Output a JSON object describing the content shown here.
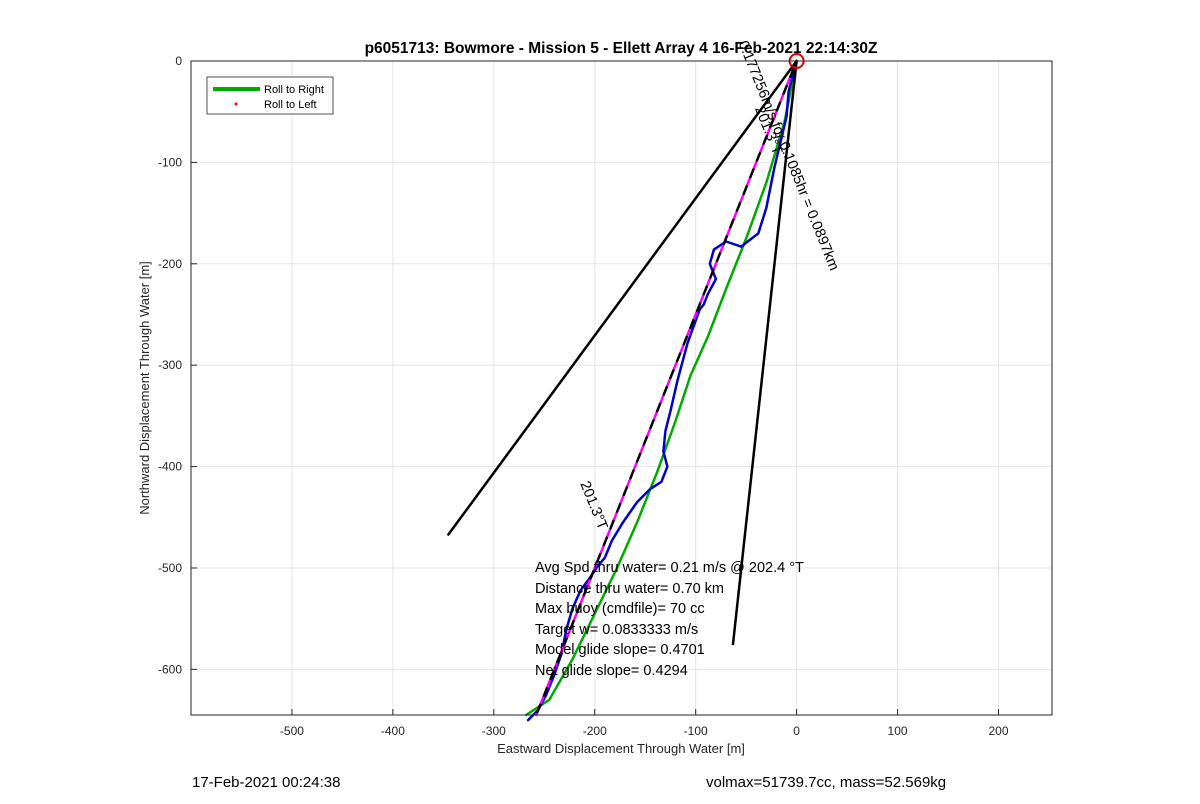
{
  "chart_data": {
    "type": "line",
    "title": "p6051713: Bowmore - Mission 5 - Ellett Array 4 16-Feb-2021 22:14:30Z",
    "xlabel": "Eastward Displacement Through Water [m]",
    "ylabel": "Northward Displacement Through Water [m]",
    "xlim": [
      -600,
      253
    ],
    "ylim": [
      -645,
      0
    ],
    "xticks": [
      -500,
      -400,
      -300,
      -200,
      -100,
      0,
      100,
      200
    ],
    "yticks": [
      0,
      -100,
      -200,
      -300,
      -400,
      -500,
      -600
    ],
    "grid": true,
    "legend_position": "top-left",
    "legend": [
      {
        "label": "Roll to Right",
        "color": "#00aa00",
        "style": "line"
      },
      {
        "label": "Roll to Left",
        "color": "#ff0000",
        "style": "dot"
      }
    ],
    "series": [
      {
        "name": "Roll to Right",
        "color": "#00aa00",
        "x": [
          0,
          -12,
          -30,
          -50,
          -70,
          -88,
          -105,
          -120,
          -138,
          -158,
          -178,
          -200,
          -222,
          -245,
          -268
        ],
        "y": [
          0,
          -60,
          -120,
          -175,
          -225,
          -272,
          -310,
          -355,
          -405,
          -455,
          -500,
          -545,
          -590,
          -630,
          -645
        ]
      },
      {
        "color": "#0000cc",
        "x": [
          0,
          -8,
          -10,
          -22,
          -30,
          -38,
          -55,
          -70,
          -82,
          -86,
          -80,
          -88,
          -92,
          -96,
          -108,
          -118,
          -125,
          -130,
          -132,
          -128,
          -134,
          -145,
          -158,
          -172,
          -183,
          -190,
          -197,
          -205,
          -214,
          -222,
          -228,
          -233,
          -240,
          -248,
          -256,
          -266
        ],
        "y": [
          0,
          -30,
          -55,
          -105,
          -145,
          -170,
          -183,
          -178,
          -186,
          -200,
          -215,
          -230,
          -240,
          -245,
          -278,
          -315,
          -345,
          -365,
          -385,
          -400,
          -415,
          -422,
          -435,
          -455,
          -473,
          -490,
          -498,
          -510,
          -522,
          -540,
          -560,
          -585,
          -605,
          -625,
          -640,
          -650
        ]
      },
      {
        "color": "#ff00ff",
        "style": "dashed",
        "x": [
          0,
          -258
        ],
        "y": [
          0,
          -645
        ]
      },
      {
        "color": "#000000",
        "style": "dashed",
        "x": [
          0,
          -258
        ],
        "y": [
          0,
          -645
        ]
      },
      {
        "color": "#000000",
        "x": [
          0,
          -345
        ],
        "y": [
          0,
          -467
        ]
      },
      {
        "color": "#000000",
        "x": [
          0,
          -63
        ],
        "y": [
          0,
          -575
        ]
      }
    ],
    "marker": {
      "x": 0,
      "y": 0,
      "color": "#dd0000",
      "shape": "circle"
    },
    "rotated_labels": [
      {
        "text": "0.177256m/s for 0.1085hr = 0.0897km",
        "x": -12,
        "y": -95,
        "angle": 68
      },
      {
        "text": "201.3°T",
        "x": -32,
        "y": -70,
        "angle": 68
      },
      {
        "text": "201.3°T",
        "x": -205,
        "y": -440,
        "angle": 68
      }
    ],
    "annotations": [
      "Avg Spd thru water=  0.21 m/s @ 202.4 °T",
      "Distance thru water=  0.70 km",
      "Max buoy (cmdfile)= 70 cc",
      "Target w= 0.0833333 m/s",
      "Model glide slope= 0.4701",
      "Net glide slope= 0.4294"
    ],
    "footer_left": "17-Feb-2021 00:24:38",
    "footer_right": "volmax=51739.7cc, mass=52.569kg"
  }
}
